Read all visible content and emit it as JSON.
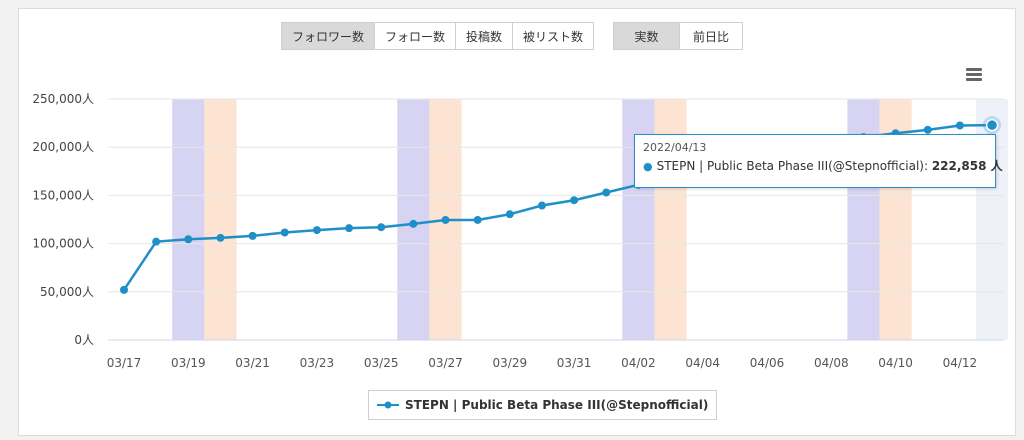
{
  "metric_tabs": [
    {
      "label": "フォロワー数",
      "active": true
    },
    {
      "label": "フォロー数",
      "active": false
    },
    {
      "label": "投稿数",
      "active": false
    },
    {
      "label": "被リスト数",
      "active": false
    }
  ],
  "mode_tabs": [
    {
      "label": "実数",
      "active": true
    },
    {
      "label": "前日比",
      "active": false
    }
  ],
  "menu_icon": "hamburger-menu-icon",
  "tooltip": {
    "date": "2022/04/13",
    "series": "STEPN | Public Beta Phase III(@Stepnofficial):",
    "value": "222,858 人"
  },
  "chart_data": {
    "type": "line",
    "x": [
      "03/17",
      "03/18",
      "03/19",
      "03/20",
      "03/21",
      "03/22",
      "03/23",
      "03/24",
      "03/25",
      "03/26",
      "03/27",
      "03/28",
      "03/29",
      "03/30",
      "03/31",
      "04/01",
      "04/02",
      "04/03",
      "04/04",
      "04/05",
      "04/06",
      "04/07",
      "04/08",
      "04/09",
      "04/10",
      "04/11",
      "04/12",
      "04/13"
    ],
    "x_tick_labels": [
      "03/17",
      "03/19",
      "03/21",
      "03/23",
      "03/25",
      "03/27",
      "03/29",
      "03/31",
      "04/02",
      "04/04",
      "04/06",
      "04/08",
      "04/10",
      "04/12"
    ],
    "series": [
      {
        "name": "STEPN | Public Beta Phase III(@Stepnofficial)",
        "color": "#1f8fc8",
        "values": [
          52000,
          102000,
          104500,
          106000,
          108000,
          111500,
          114000,
          116000,
          117000,
          120500,
          124500,
          124500,
          130500,
          139500,
          145000,
          153000,
          161000,
          168000,
          176000,
          183000,
          190000,
          197000,
          205500,
          210500,
          214500,
          218000,
          222500,
          222858
        ]
      }
    ],
    "y_ticks": [
      "0人",
      "50,000人",
      "100,000人",
      "150,000人",
      "200,000人",
      "250,000人"
    ],
    "ylim": [
      0,
      250000
    ],
    "grid": true,
    "legend_placement": "bottom",
    "weekend_bands": [
      {
        "date": "03/19",
        "color": "#d6d4f2"
      },
      {
        "date": "03/20",
        "color": "#fde4d2"
      },
      {
        "date": "03/26",
        "color": "#d6d4f2"
      },
      {
        "date": "03/27",
        "color": "#fde4d2"
      },
      {
        "date": "04/02",
        "color": "#d6d4f2"
      },
      {
        "date": "04/03",
        "color": "#fde4d2"
      },
      {
        "date": "04/09",
        "color": "#d6d4f2"
      },
      {
        "date": "04/10",
        "color": "#fde4d2"
      }
    ],
    "highlight_band": {
      "date": "04/13",
      "color": "#eef1f8"
    },
    "highlighted_point": "04/13"
  }
}
